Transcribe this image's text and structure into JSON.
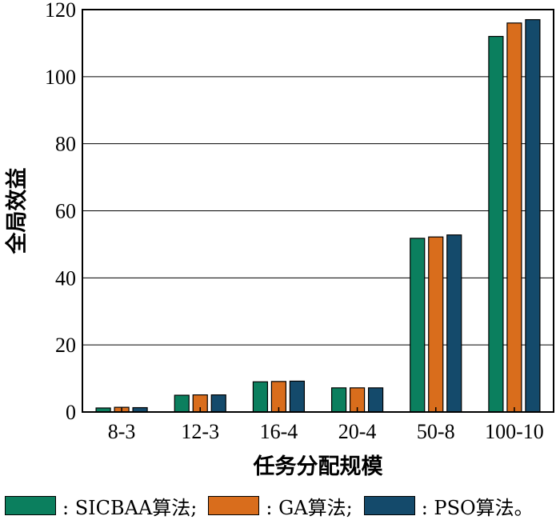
{
  "chart_data": {
    "type": "bar",
    "title": "",
    "xlabel": "任务分配规模",
    "ylabel": "全局效益",
    "categories": [
      "8-3",
      "12-3",
      "16-4",
      "20-4",
      "50-8",
      "100-10"
    ],
    "ylim": [
      0,
      120
    ],
    "yticks": [
      0,
      20,
      40,
      60,
      80,
      100,
      120
    ],
    "grid": "horizontal",
    "series": [
      {
        "name": ": SICBAA算法;",
        "color": "#0b7f5e",
        "values": [
          1.2,
          5.0,
          9.0,
          7.2,
          51.8,
          112.0
        ]
      },
      {
        "name": ": GA算法;",
        "color": "#d96d1c",
        "values": [
          1.4,
          5.1,
          9.1,
          7.2,
          52.2,
          116.0
        ]
      },
      {
        "name": ": PSO算法。",
        "color": "#144a6b",
        "values": [
          1.3,
          5.1,
          9.2,
          7.2,
          52.8,
          117.0
        ]
      }
    ],
    "legend_position": "bottom"
  }
}
